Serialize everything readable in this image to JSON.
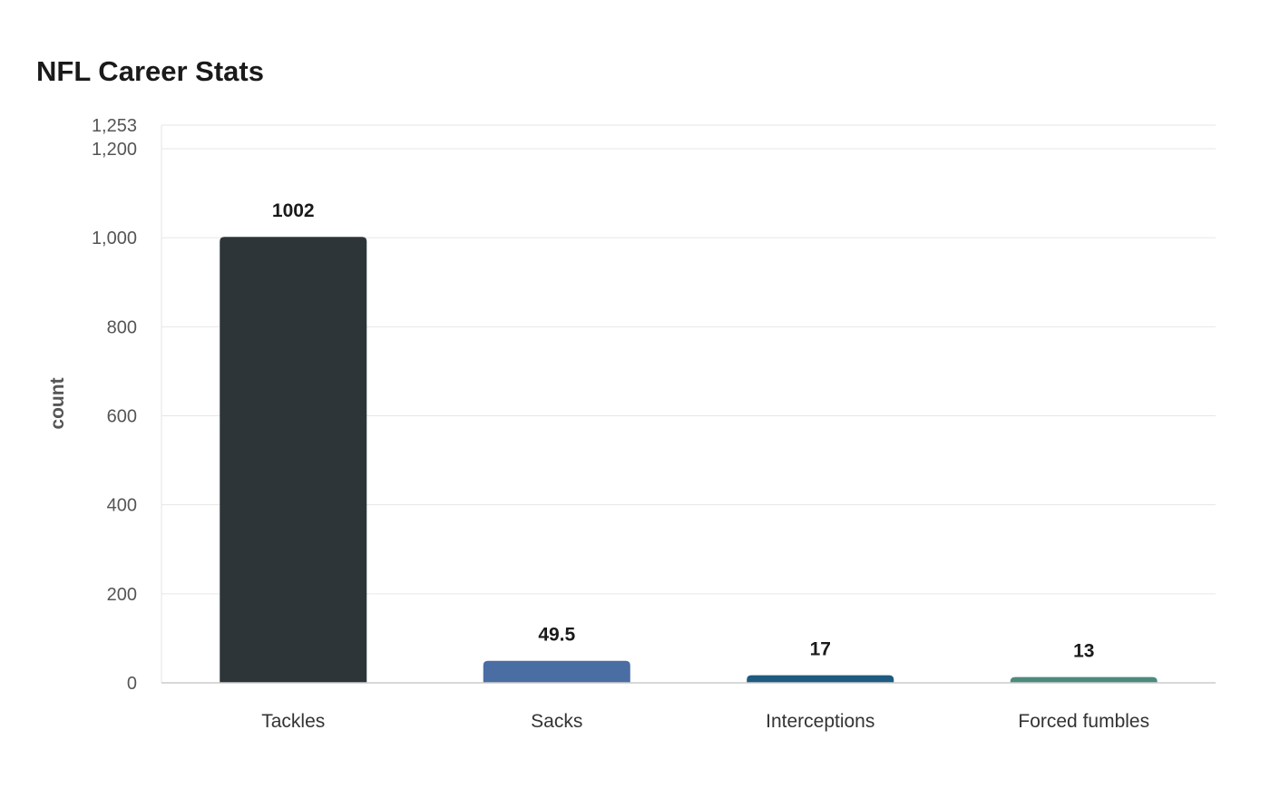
{
  "chart_data": {
    "type": "bar",
    "title": "NFL Career Stats",
    "xlabel": "",
    "ylabel": "count",
    "categories": [
      "Tackles",
      "Sacks",
      "Interceptions",
      "Forced fumbles"
    ],
    "values": [
      1002,
      49.5,
      17,
      13
    ],
    "data_labels": [
      "1002",
      "49.5",
      "17",
      "13"
    ],
    "colors": [
      "#2e3538",
      "#4a6da3",
      "#1e5b80",
      "#4d8a7c"
    ],
    "ylim": [
      0,
      1253
    ],
    "yticks": [
      0,
      200,
      400,
      600,
      800,
      1000,
      1200,
      1253
    ],
    "ytick_labels": [
      "0",
      "200",
      "400",
      "600",
      "800",
      "1,000",
      "1,200",
      "1,253"
    ],
    "grid": true,
    "legend": "none"
  }
}
